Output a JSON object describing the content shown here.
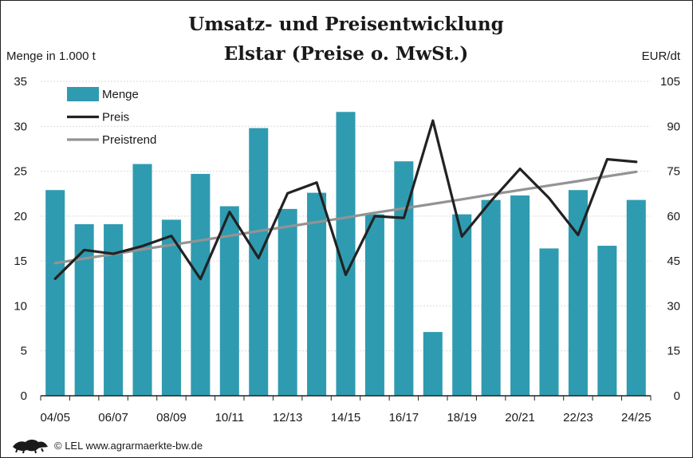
{
  "chart_data": {
    "type": "bar",
    "title": "Umsatz- und Preisentwicklung",
    "subtitle": "Elstar (Preise o. MwSt.)",
    "ylabel_left": "Menge in 1.000 t",
    "ylabel_right": "EUR/dt",
    "ylim_left": [
      0,
      35
    ],
    "ylim_right": [
      0,
      105
    ],
    "yticks_left": [
      "0",
      "5",
      "10",
      "15",
      "20",
      "25",
      "30",
      "35"
    ],
    "yticks_right": [
      "0",
      "15",
      "30",
      "45",
      "60",
      "75",
      "90",
      "105"
    ],
    "categories": [
      "04/05",
      "05/06",
      "06/07",
      "07/08",
      "08/09",
      "09/10",
      "10/11",
      "11/12",
      "12/13",
      "13/14",
      "14/15",
      "15/16",
      "16/17",
      "17/18",
      "18/19",
      "19/20",
      "20/21",
      "21/22",
      "22/23",
      "23/24",
      "24/25"
    ],
    "xtick_labels": [
      "04/05",
      "06/07",
      "08/09",
      "10/11",
      "12/13",
      "14/15",
      "16/17",
      "18/19",
      "20/21",
      "22/23",
      "24/25"
    ],
    "grid": true,
    "legend_placement": "top-left",
    "series": [
      {
        "name": "Menge",
        "type": "bar",
        "axis": "left",
        "color": "#2f9bb0",
        "values": [
          22.9,
          19.1,
          19.1,
          25.8,
          19.6,
          24.7,
          21.1,
          29.8,
          20.8,
          22.6,
          31.6,
          20.2,
          26.1,
          7.1,
          20.2,
          21.8,
          22.3,
          16.4,
          22.9,
          16.7,
          21.8
        ]
      },
      {
        "name": "Preis",
        "type": "line",
        "axis": "right",
        "color": "#222222",
        "values": [
          39.1,
          48.7,
          47.4,
          50.0,
          53.4,
          39.0,
          61.4,
          46.0,
          67.6,
          71.2,
          40.4,
          60.0,
          59.4,
          91.9,
          53.2,
          65.0,
          75.8,
          66.0,
          53.7,
          79.0,
          78.1
        ]
      },
      {
        "name": "Preistrend",
        "type": "line",
        "axis": "right",
        "color": "#939393",
        "values": [
          44.3,
          45.8,
          47.3,
          48.9,
          50.4,
          51.9,
          53.4,
          55.0,
          56.5,
          58.0,
          59.5,
          61.1,
          62.6,
          64.1,
          65.6,
          67.2,
          68.7,
          70.2,
          71.7,
          73.3,
          74.8
        ]
      }
    ]
  },
  "footer": {
    "copyright": "© LEL www.agrarmaerkte-bw.de",
    "logo_icon": "lion-logo-icon"
  }
}
